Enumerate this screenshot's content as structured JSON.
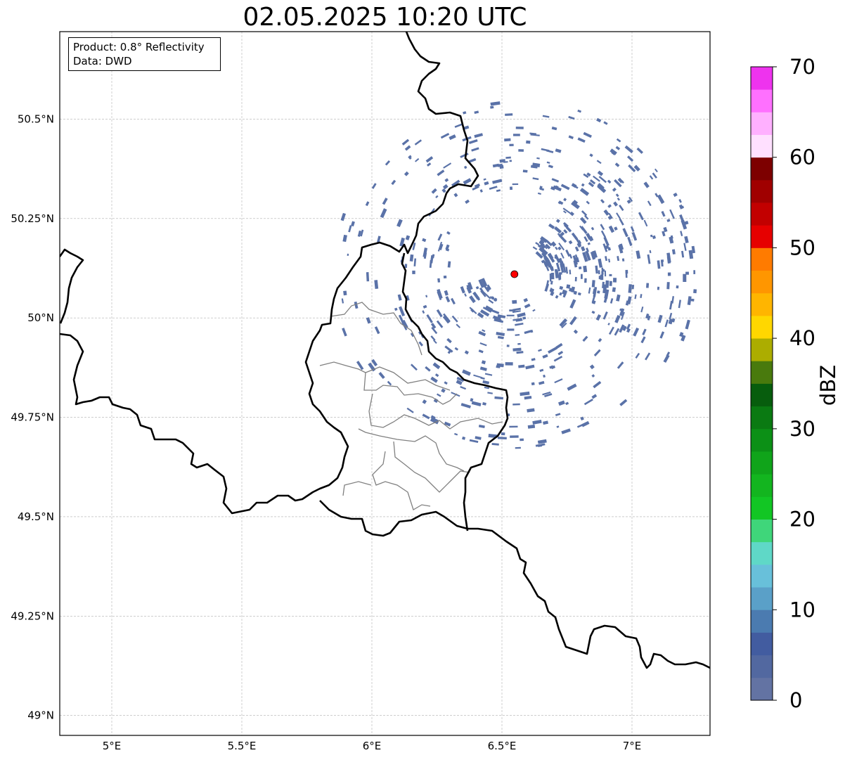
{
  "title": "02.05.2025 10:20 UTC",
  "info": {
    "product": "Product: 0.8° Reflectivity",
    "data": "Data: DWD"
  },
  "map": {
    "lon_range": [
      4.8,
      7.3
    ],
    "lat_range": [
      48.95,
      50.72
    ],
    "x_ticks": [
      "5°E",
      "5.5°E",
      "6°E",
      "6.5°E",
      "7°E"
    ],
    "x_tick_values": [
      5.0,
      5.5,
      6.0,
      6.5,
      7.0
    ],
    "y_ticks": [
      "50.5°N",
      "50.25°N",
      "50°N",
      "49.75°N",
      "49.5°N",
      "49.25°N",
      "49°N"
    ],
    "y_tick_values": [
      50.5,
      50.25,
      50.0,
      49.75,
      49.5,
      49.25,
      49.0
    ],
    "grid": true,
    "radar_site": {
      "lon": 6.548,
      "lat": 50.11,
      "color": "#ff0000"
    },
    "echo_color": "#5a72a8"
  },
  "colorbar": {
    "label": "dBZ",
    "min": 0,
    "max": 70,
    "tick_values": [
      0,
      10,
      20,
      30,
      40,
      50,
      60,
      70
    ],
    "tick_labels": [
      "0",
      "10",
      "20",
      "30",
      "40",
      "50",
      "60",
      "70"
    ],
    "colors": [
      "#6373a3",
      "#5268a0",
      "#425ca0",
      "#4b7bb0",
      "#5aa0c8",
      "#68c0da",
      "#5fd8c7",
      "#3fd67a",
      "#12c624",
      "#13b51f",
      "#10a41a",
      "#0c9016",
      "#0a7a12",
      "#075d0d",
      "#497a0d",
      "#acad00",
      "#ffd700",
      "#ffb500",
      "#ff9600",
      "#ff7b00",
      "#e60000",
      "#c20000",
      "#a00000",
      "#7d0000",
      "#ffe0ff",
      "#ffb0ff",
      "#ff70ff",
      "#ee33ee"
    ]
  }
}
